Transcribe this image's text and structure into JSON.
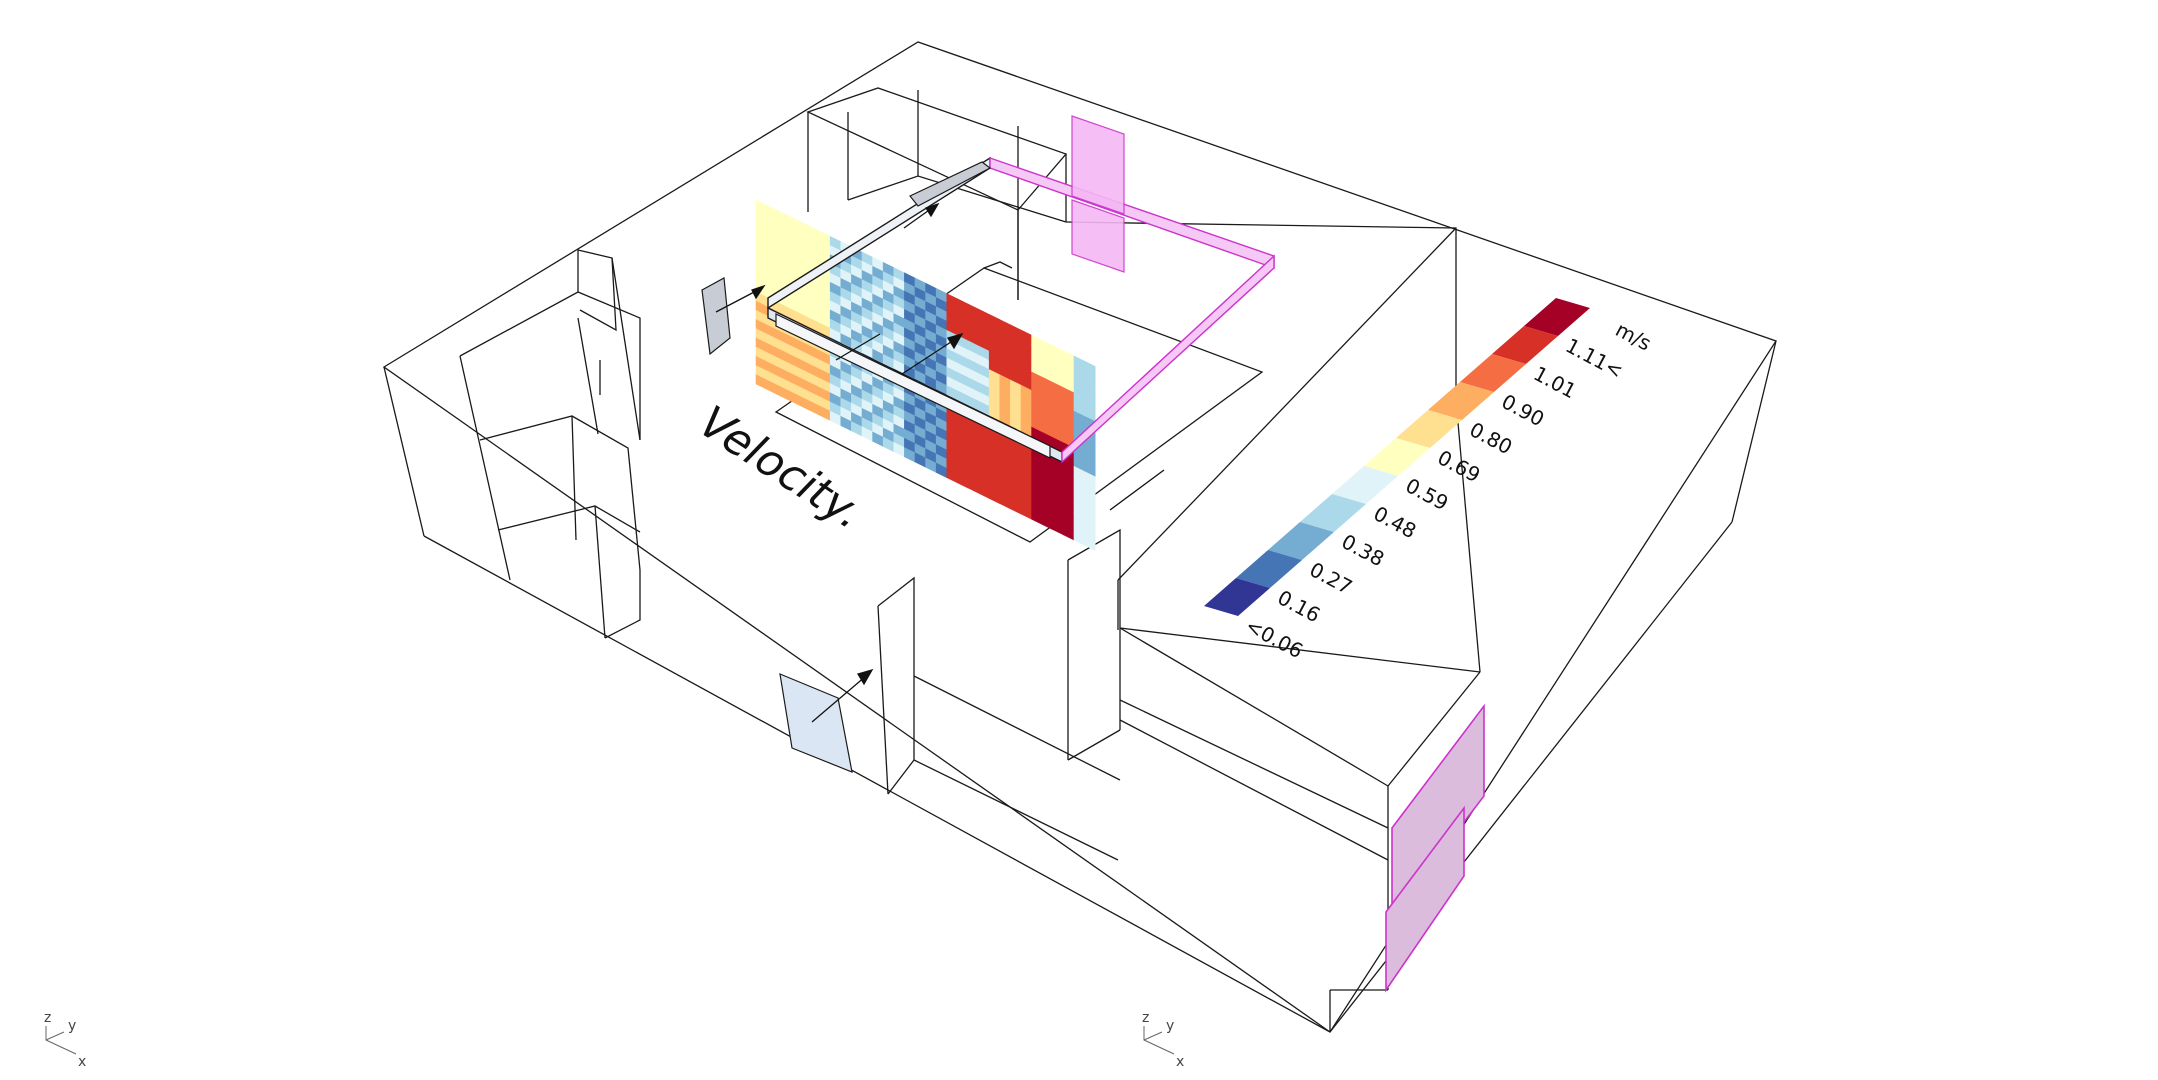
{
  "title": "Velocity.",
  "legend": {
    "unit": "m/s",
    "labels": [
      "1.11<",
      "1.01",
      "0.90",
      "0.80",
      "0.69",
      "0.59",
      "0.48",
      "0.38",
      "0.27",
      "0.16",
      "<0.06"
    ],
    "colors": [
      "#a50026",
      "#d73027",
      "#f46d43",
      "#fdae61",
      "#fee090",
      "#ffffbf",
      "#e0f3f8",
      "#abd9e9",
      "#74add1",
      "#4575b4",
      "#313695"
    ]
  },
  "axes_indicator": {
    "z": "z",
    "y": "y",
    "x": "x"
  },
  "colors": {
    "outline": "#1a1a1a",
    "inlet_fill": "#f2a8f2",
    "inlet_stroke": "#cc33cc",
    "window_fill": "#dbe6f5",
    "grey_panel": "#c8ccd4"
  }
}
